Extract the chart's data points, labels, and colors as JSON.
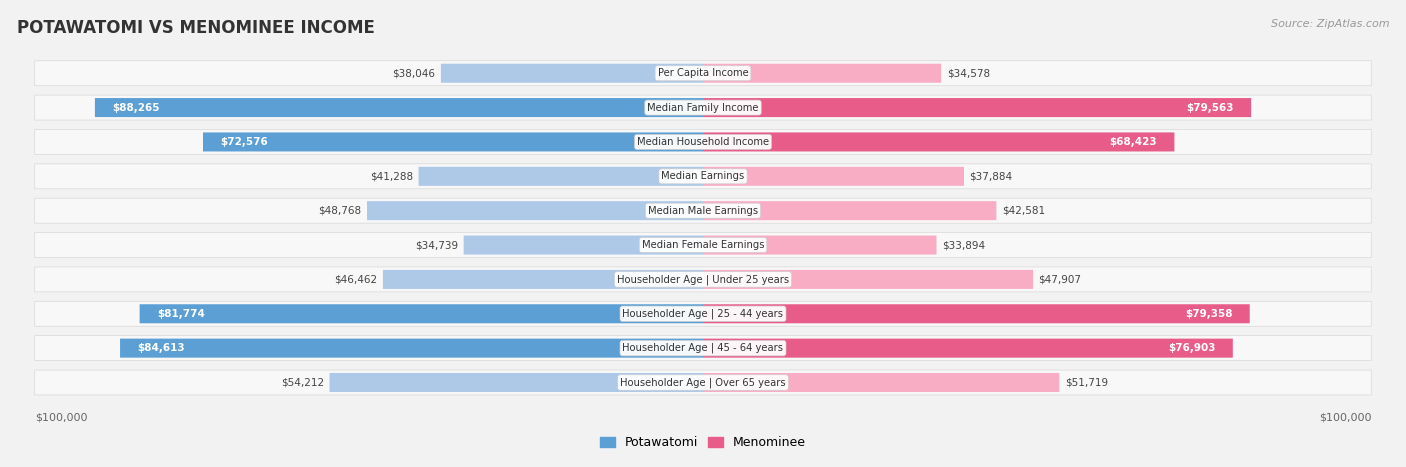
{
  "title": "POTAWATOMI VS MENOMINEE INCOME",
  "source": "Source: ZipAtlas.com",
  "categories": [
    "Per Capita Income",
    "Median Family Income",
    "Median Household Income",
    "Median Earnings",
    "Median Male Earnings",
    "Median Female Earnings",
    "Householder Age | Under 25 years",
    "Householder Age | 25 - 44 years",
    "Householder Age | 45 - 64 years",
    "Householder Age | Over 65 years"
  ],
  "potawatomi_values": [
    38046,
    88265,
    72576,
    41288,
    48768,
    34739,
    46462,
    81774,
    84613,
    54212
  ],
  "menominee_values": [
    34578,
    79563,
    68423,
    37884,
    42581,
    33894,
    47907,
    79358,
    76903,
    51719
  ],
  "potawatomi_labels": [
    "$38,046",
    "$88,265",
    "$72,576",
    "$41,288",
    "$48,768",
    "$34,739",
    "$46,462",
    "$81,774",
    "$84,613",
    "$54,212"
  ],
  "menominee_labels": [
    "$34,578",
    "$79,563",
    "$68,423",
    "$37,884",
    "$42,581",
    "$33,894",
    "$47,907",
    "$79,358",
    "$76,903",
    "$51,719"
  ],
  "pot_color_light": "#aec9e8",
  "pot_color_strong": "#5b9fd4",
  "men_color_light": "#f9adc5",
  "men_color_strong": "#e85c8a",
  "threshold": 60000,
  "max_value": 100000,
  "bg_color": "#f2f2f2",
  "row_bg_color": "#f8f8f8",
  "row_border_color": "#d8d8d8",
  "label_dark": "#444444",
  "label_white": "#ffffff",
  "title_color": "#333333",
  "source_color": "#999999",
  "axis_label_color": "#666666"
}
